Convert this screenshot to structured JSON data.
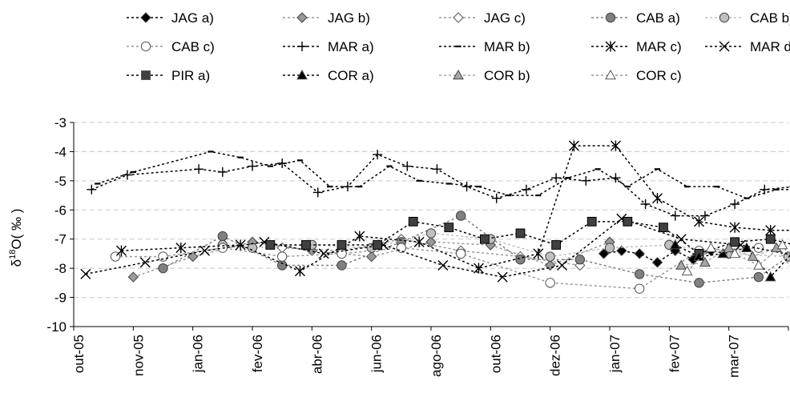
{
  "chart_data": {
    "type": "line",
    "title": "",
    "xlabel": "",
    "ylabel": "δ18O( ‰ )",
    "ylabel_parts": {
      "delta": "δ",
      "sup": "18",
      "rest": "O( ‰ )"
    },
    "ylim": [
      -10,
      -3
    ],
    "yticks": [
      -3,
      -4,
      -5,
      -6,
      -7,
      -8,
      -9,
      -10
    ],
    "grid": "horizontal-dashed",
    "legend_position": "top",
    "categories": [
      "out-05",
      "nov-05",
      "jan-06",
      "fev-06",
      "abr-06",
      "jun-06",
      "ago-06",
      "out-06",
      "dez-06",
      "jan-07",
      "fev-07",
      "mar-07"
    ],
    "series": [
      {
        "name": "JAG a)",
        "marker": "diamond",
        "fill": "#000000",
        "line": "#000000",
        "x": [
          8.4,
          8.7,
          9,
          9.3,
          9.6,
          9.9,
          10.2,
          10.5
        ],
        "y": [
          -7.5,
          -7.4,
          -7.5,
          -7.8,
          -7.4,
          -7.7,
          -7.4,
          -7.5
        ]
      },
      {
        "name": "JAG b)",
        "marker": "diamond",
        "fill": "#999999",
        "line": "#999999",
        "x": [
          0.5,
          1.5,
          2.5,
          3.5,
          4.5,
          5.5,
          6.5,
          7.5,
          8.5
        ],
        "y": [
          -8.3,
          -7.6,
          -7.1,
          -7.4,
          -7.6,
          -7.1,
          -7.2,
          -7.9,
          -7.1
        ]
      },
      {
        "name": "JAG c)",
        "marker": "diamond",
        "fill": "#ffffff",
        "line": "#999999",
        "x": [
          3,
          4,
          5,
          6,
          7,
          8
        ],
        "y": [
          -7.3,
          -7.4,
          -7.0,
          -7.4,
          -7.6,
          -7.9
        ]
      },
      {
        "name": "CAB a)",
        "marker": "circle",
        "fill": "#808080",
        "line": "#808080",
        "x": [
          1,
          2,
          3,
          4,
          5,
          6,
          7,
          8,
          9,
          10,
          11,
          11.5
        ],
        "y": [
          -8.0,
          -6.9,
          -7.9,
          -7.9,
          -7.1,
          -6.2,
          -7.7,
          -7.7,
          -8.2,
          -8.5,
          -8.3,
          -7.6
        ]
      },
      {
        "name": "CAB b)",
        "marker": "circle",
        "fill": "#bfbfbf",
        "line": "#bfbfbf",
        "x": [
          2,
          2.5,
          3.5,
          4.5,
          5.5,
          6.5,
          7.5,
          8.5,
          9.5,
          10.5,
          11.5
        ],
        "y": [
          -7.2,
          -7.3,
          -7.2,
          -7.3,
          -6.8,
          -7.0,
          -7.6,
          -7.3,
          -7.2,
          -7.5,
          -7.6
        ]
      },
      {
        "name": "CAB c)",
        "marker": "circle",
        "fill": "#ffffff",
        "line": "#999999",
        "x": [
          0.2,
          1,
          2,
          3,
          4,
          5,
          6,
          7.5,
          9,
          10,
          11
        ],
        "y": [
          -7.6,
          -7.6,
          -7.3,
          -7.6,
          -7.5,
          -7.3,
          -7.5,
          -8.5,
          -8.7,
          -7.4,
          -7.3
        ]
      },
      {
        "name": "MAR a)",
        "marker": "plus",
        "fill": "#000000",
        "line": "#000000",
        "x": [
          -0.2,
          0.4,
          1.6,
          2,
          2.5,
          3,
          3.6,
          4.1,
          4.6,
          5.1,
          5.6,
          6.1,
          6.6,
          7.1,
          7.6,
          8.1,
          8.6,
          9.1,
          9.6,
          10.1,
          10.6,
          11.1,
          11.6
        ],
        "y": [
          -5.3,
          -4.8,
          -4.6,
          -4.7,
          -4.5,
          -4.4,
          -5.4,
          -5.2,
          -4.1,
          -4.5,
          -4.6,
          -5.2,
          -5.6,
          -5.3,
          -4.9,
          -5.0,
          -4.9,
          -5.8,
          -6.2,
          -6.2,
          -5.8,
          -5.3,
          -5.2
        ]
      },
      {
        "name": "MAR b)",
        "marker": "dash",
        "fill": "#000000",
        "line": "#000000",
        "x": [
          -0.1,
          0.5,
          1.8,
          2.3,
          2.8,
          3.3,
          3.8,
          4.3,
          4.8,
          5.3,
          5.8,
          6.3,
          6.8,
          7.3,
          7.8,
          8.3,
          8.8,
          9.3,
          9.8,
          10.3,
          10.8,
          11.3,
          11.8
        ],
        "y": [
          -5.1,
          -4.7,
          -4.0,
          -4.2,
          -4.5,
          -4.3,
          -5.2,
          -5.2,
          -4.5,
          -5.0,
          -5.1,
          -5.2,
          -5.5,
          -5.5,
          -4.9,
          -4.6,
          -5.2,
          -4.6,
          -5.2,
          -5.2,
          -5.6,
          -5.3,
          -5.3
        ]
      },
      {
        "name": "MAR c)",
        "marker": "star",
        "fill": "#000000",
        "line": "#000000",
        "x": [
          0.3,
          1.3,
          2.3,
          3.3,
          4.3,
          5.3,
          6.3,
          7.3,
          7.9,
          8.6,
          9.3,
          10,
          10.6,
          11.2,
          11.8
        ],
        "y": [
          -7.4,
          -7.3,
          -7.2,
          -8.1,
          -6.9,
          -7.1,
          -8.0,
          -7.5,
          -3.8,
          -3.8,
          -5.6,
          -6.4,
          -6.6,
          -6.7,
          -6.7
        ]
      },
      {
        "name": "MAR d)",
        "marker": "cross",
        "fill": "#000000",
        "line": "#000000",
        "x": [
          -0.3,
          0.7,
          1.7,
          2.7,
          3.7,
          4.7,
          5.7,
          6.7,
          7.7,
          8.7,
          9.7,
          10.7,
          11.7
        ],
        "y": [
          -8.2,
          -7.8,
          -7.4,
          -7.1,
          -7.5,
          -7.2,
          -7.9,
          -8.3,
          -7.9,
          -6.3,
          -7.0,
          -7.2,
          -7.6
        ]
      },
      {
        "name": "PIR a)",
        "marker": "square",
        "fill": "#404040",
        "line": "#000000",
        "x": [
          2.8,
          3.4,
          4,
          4.6,
          5.2,
          5.8,
          6.4,
          7,
          7.6,
          8.2,
          8.8,
          9.4,
          10,
          10.6,
          11.2,
          11.8
        ],
        "y": [
          -7.2,
          -7.2,
          -7.2,
          -7.2,
          -6.4,
          -6.6,
          -7.0,
          -6.8,
          -7.2,
          -6.4,
          -6.4,
          -6.6,
          -7.5,
          -7.1,
          -7.0,
          -7.3
        ]
      },
      {
        "name": "COR a)",
        "marker": "triangle",
        "fill": "#000000",
        "line": "#000000",
        "x": [
          9.6,
          10,
          10.4,
          10.8,
          11.2,
          11.6
        ],
        "y": [
          -7.2,
          -7.6,
          -7.5,
          -7.3,
          -8.3,
          -7.4
        ]
      },
      {
        "name": "COR b)",
        "marker": "triangle",
        "fill": "#a6a6a6",
        "line": "#a6a6a6",
        "x": [
          9.7,
          10.1,
          10.5,
          10.9,
          11.3,
          11.7
        ],
        "y": [
          -7.9,
          -7.8,
          -7.3,
          -7.6,
          -7.3,
          -8.4
        ]
      },
      {
        "name": "COR c)",
        "marker": "triangle",
        "fill": "#ffffff",
        "line": "#999999",
        "x": [
          9.8,
          10.2,
          10.6,
          11,
          11.4,
          11.8
        ],
        "y": [
          -8.1,
          -7.3,
          -7.5,
          -7.9,
          -7.2,
          -8.5
        ]
      }
    ]
  }
}
